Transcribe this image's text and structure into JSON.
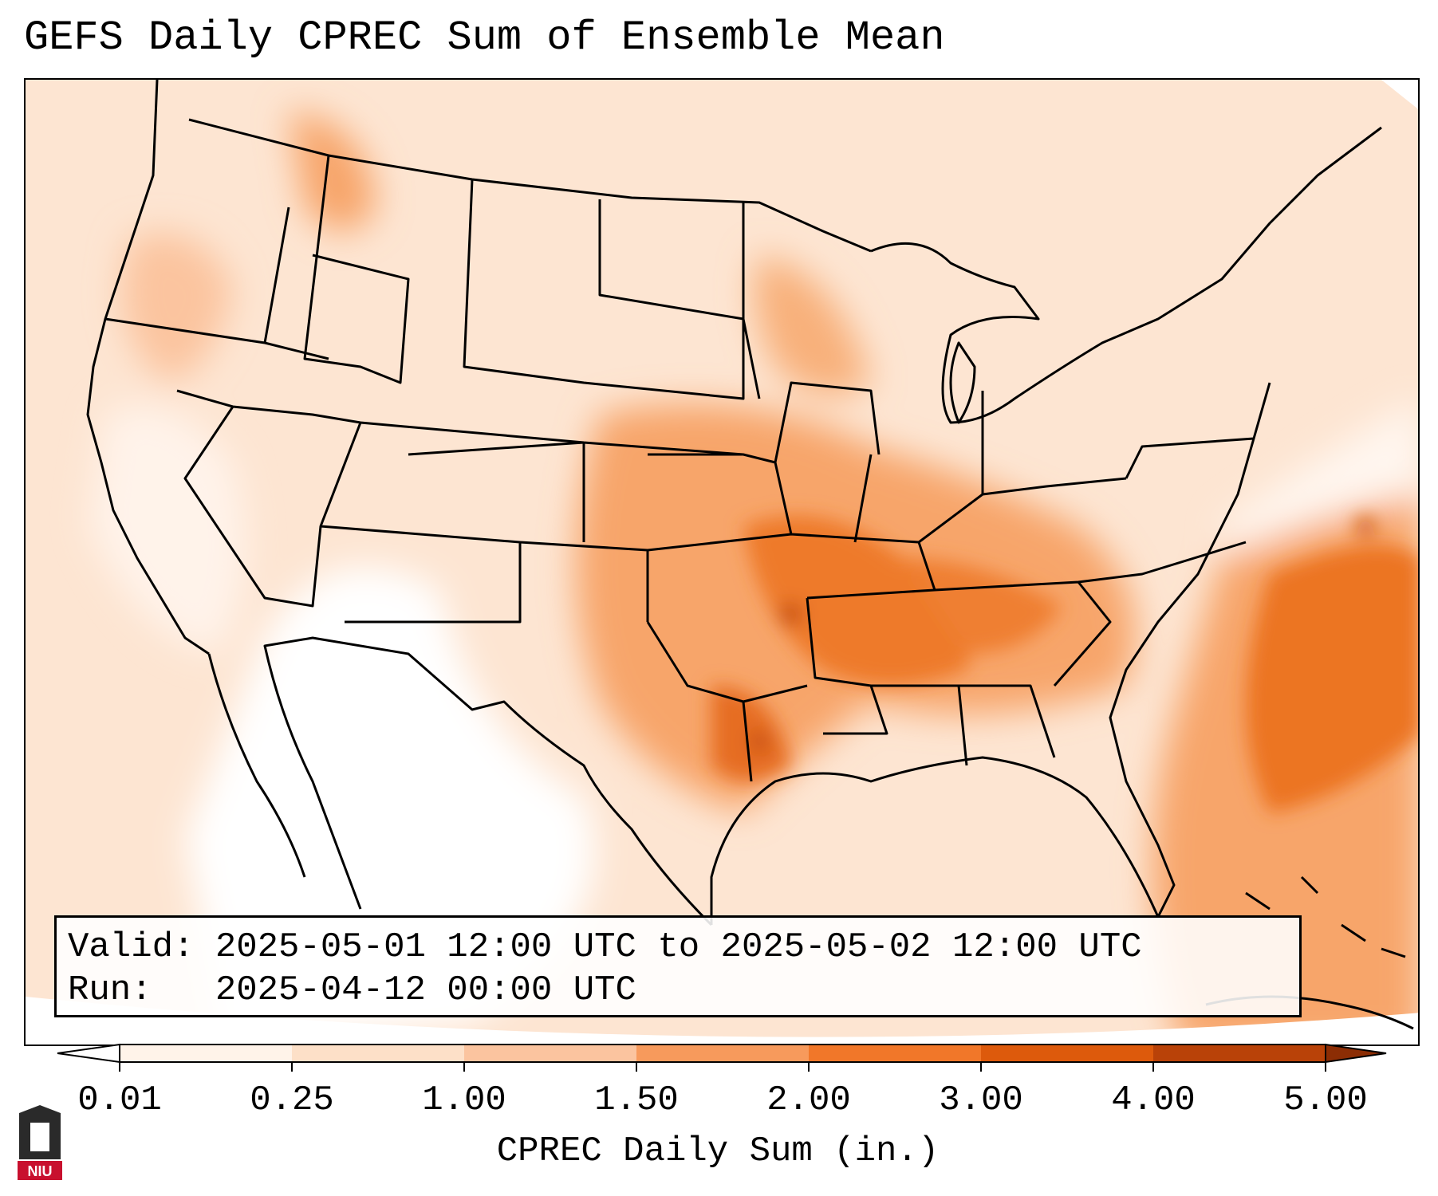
{
  "title": "GEFS Daily CPREC Sum of Ensemble Mean",
  "info": {
    "valid_label": "Valid:",
    "valid_value": "2025-05-01 12:00 UTC to 2025-05-02 12:00 UTC",
    "run_label": "Run:",
    "run_value": "2025-04-12 00:00 UTC"
  },
  "colorbar": {
    "label": "CPREC Daily Sum (in.)",
    "ticks": [
      "0.01",
      "0.25",
      "1.00",
      "1.50",
      "2.00",
      "3.00",
      "4.00",
      "5.00"
    ],
    "colors": [
      "#fff3e9",
      "#fde0c8",
      "#fbc49f",
      "#f79a5c",
      "#f17729",
      "#dd5a0c",
      "#b94208"
    ],
    "under_color": "#ffffff",
    "over_color": "#8c2d04"
  },
  "logo": {
    "text": "NIU",
    "color": "#c8102e"
  },
  "map": {
    "region": "Contiguous United States",
    "field": "CPREC daily sum",
    "coastline_color": "#000000"
  }
}
